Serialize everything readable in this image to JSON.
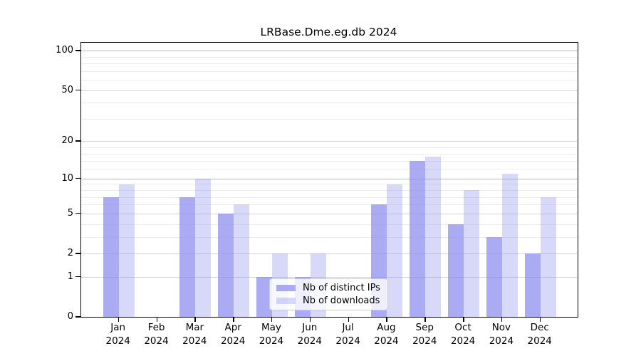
{
  "chart_data": {
    "type": "bar",
    "title": "LRBase.Dme.eg.db 2024",
    "categories": [
      "Jan",
      "Feb",
      "Mar",
      "Apr",
      "May",
      "Jun",
      "Jul",
      "Aug",
      "Sep",
      "Oct",
      "Nov",
      "Dec"
    ],
    "x_year_label": "2024",
    "series": [
      {
        "name": "Nb of distinct IPs",
        "color": "rgba(136,136,238,0.7)",
        "values": [
          7,
          0,
          7,
          5,
          1,
          1,
          0,
          6,
          14,
          4,
          3,
          2
        ]
      },
      {
        "name": "Nb of downloads",
        "color": "rgba(136,136,238,0.33)",
        "values": [
          9,
          0,
          10,
          6,
          2,
          2,
          0,
          9,
          15,
          8,
          11,
          7
        ]
      }
    ],
    "yscale": "log1p",
    "yticks": [
      0,
      1,
      2,
      5,
      10,
      20,
      50,
      100
    ],
    "ylim": [
      0,
      100
    ],
    "grid": "on",
    "legend_position": "lower center",
    "colors": {
      "major_gridline": "#d4d4d4",
      "decade_gridline": "#b8b8b8",
      "minor_gridline": "#ececec",
      "axis": "#000000"
    }
  }
}
